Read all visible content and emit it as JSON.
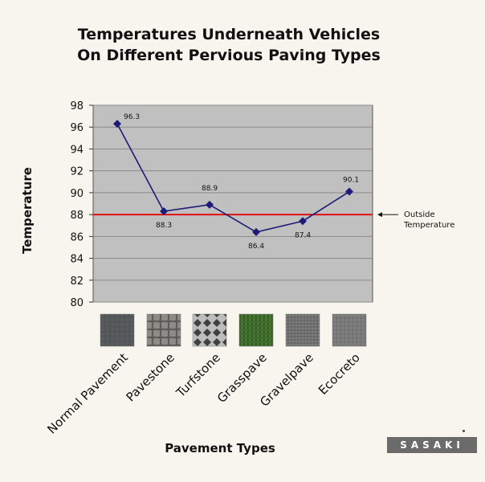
{
  "chart_data": {
    "type": "line",
    "title": [
      "Temperatures Underneath Vehicles",
      "On Different Pervious Paving Types"
    ],
    "xlabel": "Pavement Types",
    "ylabel": "Temperature",
    "categories": [
      "Normal Pavement",
      "Pavestone",
      "Turfstone",
      "Grasspave",
      "Gravelpave",
      "Ecocreto"
    ],
    "values": [
      96.3,
      88.3,
      88.9,
      86.4,
      87.4,
      90.1
    ],
    "data_labels": [
      "96.3",
      "88.3",
      "88.9",
      "86.4",
      "87.4",
      "90.1"
    ],
    "ylim": [
      80,
      98
    ],
    "yticks": [
      "80",
      "82",
      "84",
      "86",
      "88",
      "90",
      "92",
      "94",
      "96",
      "98"
    ],
    "grid": true,
    "reference_line": {
      "value": 88,
      "label": [
        "Outside",
        "Temperature"
      ],
      "color": "#e01010"
    },
    "colors": {
      "series": "#1e1a78",
      "plot_bg": "#c0c0c0",
      "grid": "#8a8a8a"
    },
    "swatch_colors": [
      "#55585a",
      "#7d7b76",
      "#8c8c8c",
      "#3d6a2c",
      "#707070",
      "#787878"
    ]
  },
  "logo": {
    "text": "SASAKI"
  }
}
